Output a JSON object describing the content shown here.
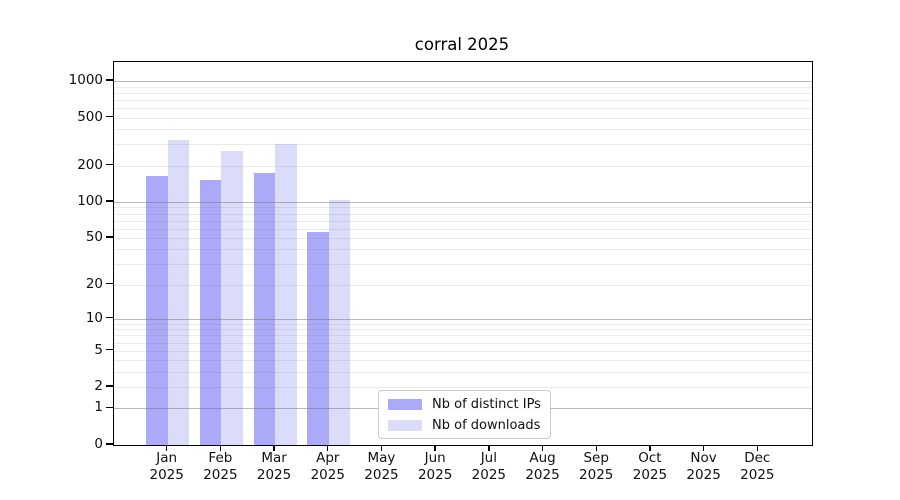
{
  "title": "corral 2025",
  "chart_data": {
    "type": "bar",
    "title": "corral 2025",
    "categories": [
      "Jan 2025",
      "Feb 2025",
      "Mar 2025",
      "Apr 2025",
      "May 2025",
      "Jun 2025",
      "Jul 2025",
      "Aug 2025",
      "Sep 2025",
      "Oct 2025",
      "Nov 2025",
      "Dec 2025"
    ],
    "x_tick_labels": [
      {
        "month": "Jan",
        "year": "2025"
      },
      {
        "month": "Feb",
        "year": "2025"
      },
      {
        "month": "Mar",
        "year": "2025"
      },
      {
        "month": "Apr",
        "year": "2025"
      },
      {
        "month": "May",
        "year": "2025"
      },
      {
        "month": "Jun",
        "year": "2025"
      },
      {
        "month": "Jul",
        "year": "2025"
      },
      {
        "month": "Aug",
        "year": "2025"
      },
      {
        "month": "Sep",
        "year": "2025"
      },
      {
        "month": "Oct",
        "year": "2025"
      },
      {
        "month": "Nov",
        "year": "2025"
      },
      {
        "month": "Dec",
        "year": "2025"
      }
    ],
    "series": [
      {
        "name": "Nb of distinct IPs",
        "color": "#aaaaf8",
        "values": [
          165,
          152,
          173,
          56,
          0,
          0,
          0,
          0,
          0,
          0,
          0,
          0
        ]
      },
      {
        "name": "Nb of downloads",
        "color": "#dbdbfa",
        "values": [
          327,
          264,
          300,
          103,
          0,
          0,
          0,
          0,
          0,
          0,
          0,
          0
        ]
      }
    ],
    "y_scale": "log1p",
    "y_ticks": [
      0,
      1,
      2,
      5,
      10,
      20,
      50,
      100,
      200,
      500,
      1000
    ],
    "ylim": [
      0,
      1440
    ],
    "grid": true,
    "legend_position": "lower center"
  }
}
